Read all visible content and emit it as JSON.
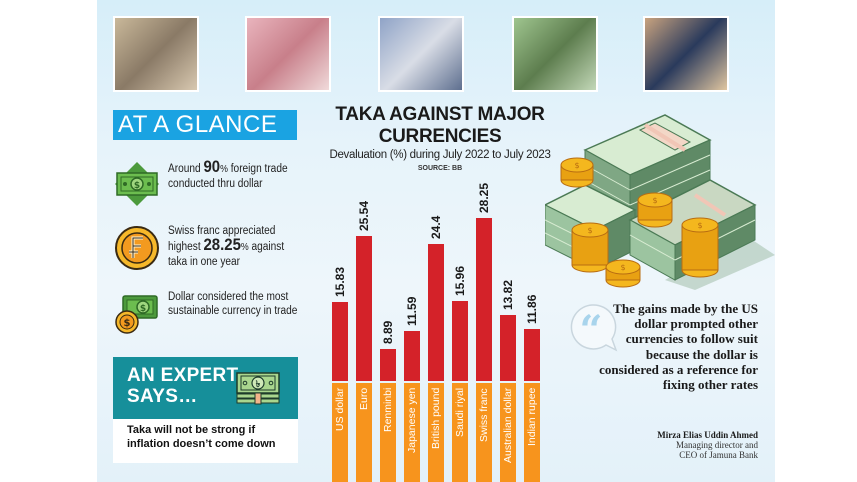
{
  "photos": [
    {
      "name": "japanese-yen-notes-photo",
      "colors": [
        "#c9b89a",
        "#8a7a66",
        "#d8c8b0"
      ]
    },
    {
      "name": "chinese-yuan-notes-photo",
      "colors": [
        "#e9b4bd",
        "#c87f8a",
        "#f0dada"
      ]
    },
    {
      "name": "us-dollar-counter-photo",
      "colors": [
        "#8fa3c7",
        "#d9dde6",
        "#5e6f8f"
      ]
    },
    {
      "name": "euro-notes-photo",
      "colors": [
        "#9fc58f",
        "#5d7d4e",
        "#c3d8b8"
      ]
    },
    {
      "name": "indian-rupee-notes-photo",
      "colors": [
        "#c9a37f",
        "#2a3a5c",
        "#e0c6a0"
      ]
    }
  ],
  "at_a_glance": {
    "title": "AT A GLANCE",
    "items": [
      {
        "icon": "dollar-bill-icon",
        "pre": "Around ",
        "highlight": "90",
        "pct": "%",
        "post": " foreign trade conducted thru dollar"
      },
      {
        "icon": "swiss-franc-coin-icon",
        "pre": "Swiss franc appreciated highest ",
        "highlight": "28.25",
        "pct": "%",
        "post": " against taka in one year"
      },
      {
        "icon": "cash-and-coin-icon",
        "pre": "Dollar considered the most sustainable currency in trade",
        "highlight": "",
        "pct": "",
        "post": ""
      }
    ]
  },
  "expert": {
    "title_line1": "AN EXPERT",
    "title_line2": "SAYS…",
    "quote": "Taka will not be strong if inflation doesn’t come down"
  },
  "chart_data": {
    "type": "bar",
    "title": "TAKA AGAINST MAJOR CURRENCIES",
    "subtitle": "Devaluation (%) during July 2022 to July 2023",
    "source": "SOURCE: BB",
    "xlabel": "",
    "ylabel": "Devaluation (%)",
    "categories": [
      "US dollar",
      "Euro",
      "Renminbi",
      "Japanese yen",
      "British pound",
      "Saudi riyal",
      "Swiss franc",
      "Australian dollar",
      "Indian rupee"
    ],
    "values": [
      15.83,
      25.54,
      8.89,
      11.59,
      24.4,
      15.96,
      28.25,
      13.82,
      11.86
    ],
    "value_labels": [
      "15.83",
      "25.54",
      "8.89",
      "11.59",
      "24.4",
      "15.96",
      "28.25",
      "13.82",
      "11.86"
    ],
    "ylim": [
      0,
      30
    ],
    "grid": false,
    "legend": "none",
    "colors": {
      "bar": "#d42229",
      "label_band": "#f7941d"
    }
  },
  "quote": {
    "text": "The gains made by the US dollar prompted other currencies to follow suit because the dollar is considered as a reference for fixing other rates",
    "author_name": "Mirza Elias Uddin Ahmed",
    "author_title_line1": "Managing director and",
    "author_title_line2": "CEO of Jamuna Bank"
  }
}
